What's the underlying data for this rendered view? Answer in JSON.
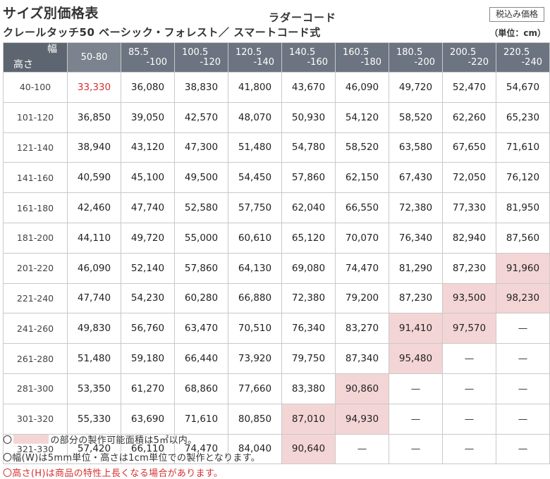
{
  "header": {
    "title": "サイズ別価格表",
    "subtitle_top": "ラダーコード",
    "subtitle_main": "クレールタッチ50 ベーシック・フォレスト／ スマートコード式",
    "tax_badge": "税込み価格",
    "unit": "（単位：cm）"
  },
  "table": {
    "corner_width": "幅",
    "corner_height": "高さ",
    "width_headers": [
      [
        "50-80",
        ""
      ],
      [
        "85.5",
        "-100"
      ],
      [
        "100.5",
        "-120"
      ],
      [
        "120.5",
        "-140"
      ],
      [
        "140.5",
        "-160"
      ],
      [
        "160.5",
        "-180"
      ],
      [
        "180.5",
        "-200"
      ],
      [
        "200.5",
        "-220"
      ],
      [
        "220.5",
        "-240"
      ]
    ],
    "rows": [
      {
        "height": "40-100",
        "prices": [
          "33,330",
          "36,080",
          "38,830",
          "41,800",
          "43,670",
          "46,090",
          "49,720",
          "52,470",
          "54,670"
        ]
      },
      {
        "height": "101-120",
        "prices": [
          "36,850",
          "39,050",
          "42,570",
          "48,070",
          "50,930",
          "54,120",
          "58,520",
          "62,260",
          "65,230"
        ]
      },
      {
        "height": "121-140",
        "prices": [
          "38,940",
          "43,120",
          "47,300",
          "51,480",
          "54,780",
          "58,520",
          "63,580",
          "67,650",
          "71,610"
        ]
      },
      {
        "height": "141-160",
        "prices": [
          "40,590",
          "45,100",
          "49,500",
          "54,450",
          "57,860",
          "62,150",
          "67,430",
          "72,050",
          "76,120"
        ]
      },
      {
        "height": "161-180",
        "prices": [
          "42,460",
          "47,740",
          "52,580",
          "57,750",
          "62,040",
          "66,550",
          "72,380",
          "77,330",
          "81,950"
        ]
      },
      {
        "height": "181-200",
        "prices": [
          "44,110",
          "49,720",
          "55,000",
          "60,610",
          "65,120",
          "70,070",
          "76,340",
          "82,940",
          "87,560"
        ]
      },
      {
        "height": "201-220",
        "prices": [
          "46,090",
          "52,140",
          "57,860",
          "64,130",
          "69,080",
          "74,470",
          "81,290",
          "87,230",
          "91,960"
        ]
      },
      {
        "height": "221-240",
        "prices": [
          "47,740",
          "54,230",
          "60,280",
          "66,880",
          "72,380",
          "79,200",
          "87,230",
          "93,500",
          "98,230"
        ]
      },
      {
        "height": "241-260",
        "prices": [
          "49,830",
          "56,760",
          "63,470",
          "70,510",
          "76,340",
          "83,270",
          "91,410",
          "97,570",
          "—"
        ]
      },
      {
        "height": "261-280",
        "prices": [
          "51,480",
          "59,180",
          "66,440",
          "73,920",
          "79,750",
          "87,340",
          "95,480",
          "—",
          "—"
        ]
      },
      {
        "height": "281-300",
        "prices": [
          "53,350",
          "61,270",
          "68,860",
          "77,660",
          "83,380",
          "90,860",
          "—",
          "—",
          "—"
        ]
      },
      {
        "height": "301-320",
        "prices": [
          "55,330",
          "63,690",
          "71,610",
          "80,850",
          "87,010",
          "94,930",
          "—",
          "—",
          "—"
        ]
      },
      {
        "height": "321-330",
        "prices": [
          "57,420",
          "66,110",
          "74,470",
          "84,040",
          "90,640",
          "—",
          "—",
          "—",
          "—"
        ]
      }
    ],
    "highlight_color": "#f4d5d5",
    "accent_red": "#d53030"
  },
  "notes": {
    "n1_prefix": "〇",
    "n1_text": "の部分の製作可能面積は5㎡以内。",
    "n2": "〇幅(W)は5mm単位・高さは1cm単位での製作となります。",
    "n3": "〇高さ(H)は商品の特性上長くなる場合があります。"
  }
}
